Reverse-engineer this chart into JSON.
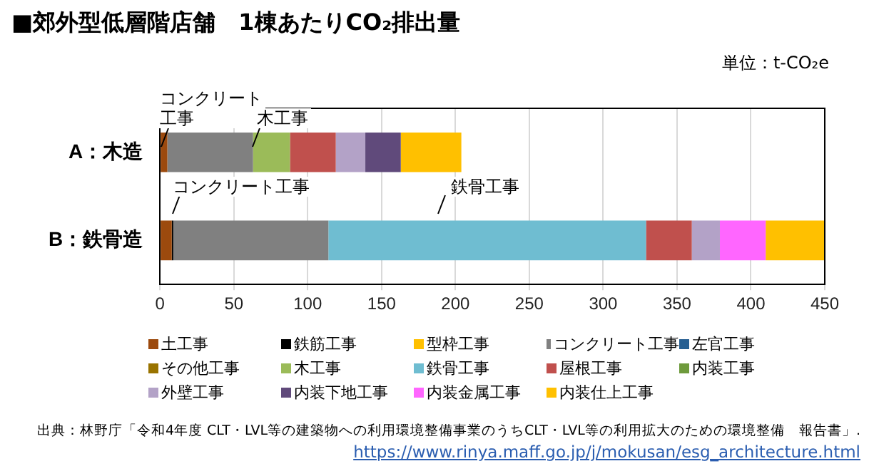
{
  "chart_data": {
    "type": "bar",
    "orientation": "horizontal",
    "stacked": true,
    "title": "■郊外型低層階店舗　1棟あたりCO₂排出量",
    "categories": [
      "A：木造",
      "B：鉄骨造"
    ],
    "series": [
      {
        "name": "土工事",
        "color": "#9c4a0e",
        "values": [
          5,
          8
        ]
      },
      {
        "name": "鉄筋工事",
        "color": "#000000",
        "values": [
          null,
          1
        ]
      },
      {
        "name": "型枠工事",
        "color": "#ffc000",
        "values": [
          null,
          null
        ]
      },
      {
        "name": "コンクリート工事",
        "color": "#808080",
        "values": [
          58,
          105
        ]
      },
      {
        "name": "左官工事",
        "color": "#255e91",
        "values": [
          null,
          null
        ]
      },
      {
        "name": "その他工事",
        "color": "#997300",
        "values": [
          null,
          null
        ]
      },
      {
        "name": "木工事",
        "color": "#9bbb59",
        "values": [
          25,
          null
        ]
      },
      {
        "name": "鉄骨工事",
        "color": "#6fbdd1",
        "values": [
          null,
          215
        ]
      },
      {
        "name": "屋根工事",
        "color": "#c0504d",
        "values": [
          31,
          31
        ]
      },
      {
        "name": "内装工事",
        "color": "#6e9a3c",
        "values": [
          null,
          null
        ]
      },
      {
        "name": "外壁工事",
        "color": "#b3a2c7",
        "values": [
          20,
          19
        ]
      },
      {
        "name": "内装下地工事",
        "color": "#604a7b",
        "values": [
          24,
          null
        ]
      },
      {
        "name": "内装金属工事",
        "color": "#ff66ff",
        "values": [
          null,
          31
        ]
      },
      {
        "name": "内装仕上工事",
        "color": "#ffc000",
        "values": [
          41,
          40
        ]
      }
    ],
    "xlim": [
      0,
      450
    ],
    "xticks": [
      0,
      50,
      100,
      150,
      200,
      250,
      300,
      350,
      400,
      450
    ],
    "grid": "x",
    "legend": "bottom",
    "annotations": [
      "単位：t-CO₂e",
      "コンクリート工事",
      "木工事",
      "コンクリート工事",
      "鉄骨工事",
      "出典：林野庁「令和4年度 CLT・LVL等の建築物への利用環境整備事業のうちCLT・LVL等の利用拡大のための環境整備　報告書」.",
      "https://www.rinya.maff.go.jp/j/mokusan/esg_architecture.html"
    ]
  }
}
